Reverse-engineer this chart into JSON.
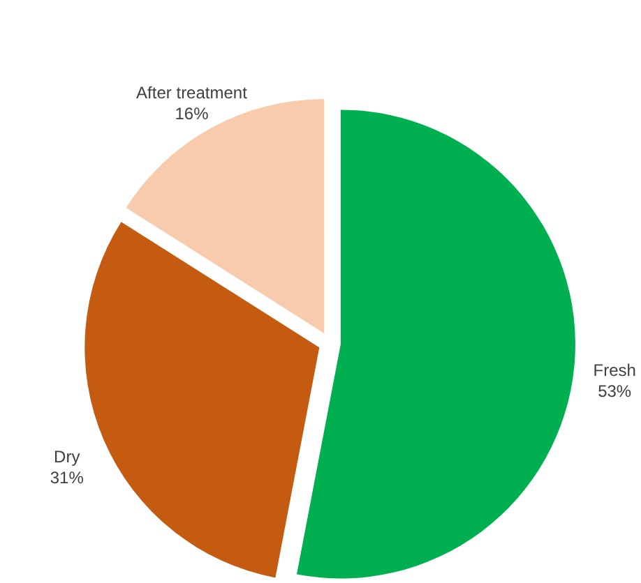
{
  "chart_data": {
    "type": "pie",
    "categories": [
      "Fresh",
      "Dry",
      "After treatment"
    ],
    "values": [
      53,
      31,
      16
    ],
    "colors": [
      "#00b050",
      "#c55a11",
      "#f8cbad"
    ],
    "value_labels": [
      "53%",
      "31%",
      "16%"
    ],
    "legend": false
  }
}
